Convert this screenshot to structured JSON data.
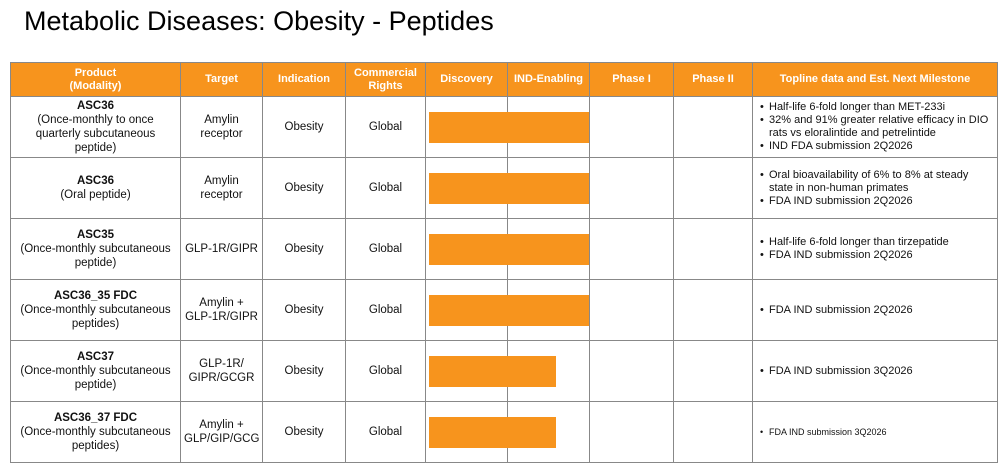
{
  "title": "Metabolic Diseases: Obesity - Peptides",
  "table": {
    "header": [
      "Product\n(Modality)",
      "Target",
      "Indication",
      "Commercial Rights",
      "Discovery",
      "IND-Enabling",
      "Phase I",
      "Phase II",
      "Topline data and Est. Next Milestone"
    ],
    "rows": [
      {
        "product": "ASC36",
        "modality": "(Once-monthly to once quarterly subcutaneous peptide)",
        "target": "Amylin\nreceptor",
        "indication": "Obesity",
        "rights": "Global",
        "progress": 2,
        "milestones": [
          "Half-life 6-fold longer than MET-233i",
          "32% and 91% greater relative efficacy in DIO rats vs eloralintide and petrelintide",
          "IND FDA submission 2Q2026"
        ]
      },
      {
        "product": "ASC36",
        "modality": "(Oral peptide)",
        "target": "Amylin\nreceptor",
        "indication": "Obesity",
        "rights": "Global",
        "progress": 2,
        "milestones": [
          "Oral bioavailability of 6% to 8% at steady state in non-human primates",
          "FDA IND submission 2Q2026"
        ]
      },
      {
        "product": "ASC35",
        "modality": "(Once-monthly subcutaneous peptide)",
        "target": "GLP-1R/GIPR",
        "indication": "Obesity",
        "rights": "Global",
        "progress": 2,
        "milestones": [
          "Half-life 6-fold longer than tirzepatide",
          "FDA IND submission 2Q2026"
        ]
      },
      {
        "product": "ASC36_35 FDC",
        "modality": "(Once-monthly subcutaneous peptides)",
        "target": "Amylin +\nGLP-1R/GIPR",
        "indication": "Obesity",
        "rights": "Global",
        "progress": 2,
        "milestones": [
          "FDA IND submission 2Q2026"
        ]
      },
      {
        "product": "ASC37",
        "modality": "(Once-monthly subcutaneous peptide)",
        "target": "GLP-1R/\nGIPR/GCGR",
        "indication": "Obesity",
        "rights": "Global",
        "progress": 1.6,
        "milestones": [
          "FDA IND submission 3Q2026"
        ]
      },
      {
        "product": "ASC36_37 FDC",
        "modality": "(Once-monthly subcutaneous peptides)",
        "target": "Amylin +\nGLP/GIP/GCG",
        "indication": "Obesity",
        "rights": "Global",
        "progress": 1.6,
        "milestones": [
          "FDA IND submission 3Q2026"
        ]
      }
    ]
  }
}
